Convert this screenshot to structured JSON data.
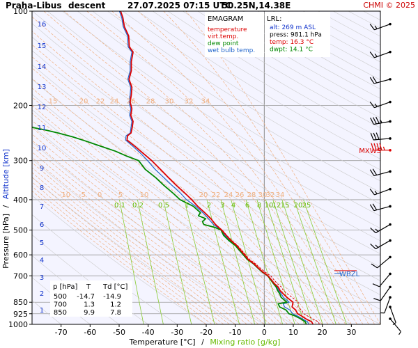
{
  "chart_data": {
    "type": "line",
    "title": {
      "station": "Praha-Libus",
      "mode": "descent",
      "datetime": "27.07.2025 07:15 UTC",
      "coords": "50.25N,14.38E"
    },
    "copyright": "CHMI © 2025",
    "diagram_name": "EMAGRAM",
    "xlabel": {
      "temperature": "Temperature [°C]",
      "separator": "/",
      "mixing": "Mixing ratio [g/kg]"
    },
    "ylabel": {
      "pressure": "Pressure [hPa]",
      "separator": "/",
      "altitude": "Altitude [km]"
    },
    "x_ticks": [
      -70,
      -60,
      -50,
      -40,
      -30,
      -20,
      -10,
      0,
      10,
      20,
      30
    ],
    "xlim": [
      -80,
      40
    ],
    "p_ticks": [
      100,
      200,
      300,
      400,
      500,
      600,
      700,
      850,
      925,
      1000
    ],
    "ylim_hpa": [
      1000,
      100
    ],
    "altitude_ticks_km": [
      1,
      2,
      3,
      4,
      5,
      6,
      7,
      8,
      9,
      10,
      11,
      12,
      13,
      14,
      15,
      16
    ],
    "legend": [
      {
        "label": "temperature",
        "color": "#dd0000"
      },
      {
        "label": "virt.temp.",
        "color": "#dd0000"
      },
      {
        "label": "dew point",
        "color": "#008800"
      },
      {
        "label": "wet bulb temp.",
        "color": "#2266cc"
      }
    ],
    "lrl_box": {
      "title": "LRL:",
      "rows": [
        {
          "text": "alt: 269 m ASL",
          "color": "#1133cc"
        },
        {
          "text": "press: 981.1 hPa",
          "color": "#000000"
        },
        {
          "text": "temp: 16.3 °C",
          "color": "#dd0000"
        },
        {
          "text": "dwpt: 14.1 °C",
          "color": "#008800"
        }
      ]
    },
    "summary_table": {
      "headers": [
        "p [hPa]",
        "T",
        "Td [°C]"
      ],
      "rows": [
        [
          "500",
          "-14.7",
          "-14.9"
        ],
        [
          "700",
          "1.3",
          "1.2"
        ],
        [
          "850",
          "9.9",
          "7.8"
        ]
      ]
    },
    "mixing_ratio_labels": [
      "0.1",
      "0.2",
      "0.5",
      "1",
      "2",
      "3",
      "4",
      "6",
      "8",
      "10",
      "12",
      "15",
      "20",
      "25"
    ],
    "mixing_ratio_labels_300": [
      "20",
      "22",
      "24",
      "26",
      "28",
      "30",
      "32",
      "34"
    ],
    "adiabat_labels_200": [
      "15",
      "20",
      "22",
      "24",
      "26",
      "28",
      "30",
      "32",
      "34"
    ],
    "adiabat_labels_400": [
      "-10",
      "-5",
      "0",
      "5",
      "10"
    ],
    "markers": [
      {
        "label": "MXWS",
        "p_hpa": 278,
        "color": "#dd0000"
      },
      {
        "label": "WBZL",
        "p_hpa": 688,
        "color": "#2266cc"
      }
    ],
    "series": [
      {
        "name": "temperature",
        "color": "#dd0000",
        "points": [
          [
            1000,
            16.8
          ],
          [
            981,
            16.3
          ],
          [
            960,
            14.3
          ],
          [
            940,
            12.8
          ],
          [
            925,
            11.5
          ],
          [
            900,
            10.8
          ],
          [
            880,
            9.6
          ],
          [
            850,
            9.9
          ],
          [
            820,
            7.8
          ],
          [
            800,
            6.6
          ],
          [
            780,
            5.4
          ],
          [
            760,
            4.8
          ],
          [
            740,
            3.4
          ],
          [
            720,
            2.4
          ],
          [
            700,
            1.3
          ],
          [
            680,
            -0.6
          ],
          [
            660,
            -2.1
          ],
          [
            640,
            -3.6
          ],
          [
            620,
            -5.6
          ],
          [
            600,
            -6.8
          ],
          [
            580,
            -8.2
          ],
          [
            560,
            -9.5
          ],
          [
            540,
            -11.5
          ],
          [
            520,
            -13.1
          ],
          [
            500,
            -14.7
          ],
          [
            480,
            -16.8
          ],
          [
            460,
            -18.4
          ],
          [
            440,
            -20.5
          ],
          [
            420,
            -22.9
          ],
          [
            400,
            -25.0
          ],
          [
            380,
            -27.5
          ],
          [
            360,
            -30.3
          ],
          [
            340,
            -33.0
          ],
          [
            320,
            -35.8
          ],
          [
            300,
            -38.8
          ],
          [
            285,
            -41.6
          ],
          [
            270,
            -44.6
          ],
          [
            258,
            -47.3
          ],
          [
            250,
            -47.1
          ],
          [
            245,
            -45.9
          ],
          [
            235,
            -45.5
          ],
          [
            225,
            -45.2
          ],
          [
            215,
            -46.0
          ],
          [
            205,
            -45.6
          ],
          [
            195,
            -46.2
          ],
          [
            185,
            -45.8
          ],
          [
            175,
            -45.6
          ],
          [
            165,
            -46.6
          ],
          [
            155,
            -45.8
          ],
          [
            145,
            -45.8
          ],
          [
            135,
            -45.2
          ],
          [
            130,
            -46.5
          ],
          [
            120,
            -46.7
          ],
          [
            112,
            -48.2
          ],
          [
            105,
            -48.7
          ],
          [
            100,
            -49.5
          ]
        ]
      },
      {
        "name": "virt.temp.",
        "color": "#dd0000",
        "points": [
          [
            1000,
            19.0
          ],
          [
            981,
            18.6
          ],
          [
            960,
            16.6
          ],
          [
            940,
            14.9
          ],
          [
            925,
            13.6
          ],
          [
            900,
            12.8
          ],
          [
            880,
            11.6
          ],
          [
            850,
            11.7
          ],
          [
            820,
            9.6
          ],
          [
            800,
            8.0
          ],
          [
            780,
            6.6
          ],
          [
            760,
            5.9
          ],
          [
            740,
            4.4
          ],
          [
            720,
            3.3
          ],
          [
            700,
            2.2
          ],
          [
            680,
            0.2
          ],
          [
            660,
            -1.5
          ],
          [
            640,
            -3.1
          ],
          [
            620,
            -5.1
          ],
          [
            600,
            -6.4
          ],
          [
            580,
            -7.8
          ],
          [
            560,
            -9.2
          ],
          [
            540,
            -11.2
          ],
          [
            520,
            -12.9
          ],
          [
            500,
            -14.5
          ],
          [
            480,
            -16.7
          ],
          [
            460,
            -18.3
          ],
          [
            440,
            -20.4
          ],
          [
            420,
            -22.8
          ],
          [
            400,
            -25.0
          ],
          [
            380,
            -27.5
          ],
          [
            360,
            -30.3
          ],
          [
            340,
            -33.0
          ],
          [
            320,
            -35.8
          ],
          [
            300,
            -38.8
          ],
          [
            285,
            -41.6
          ],
          [
            270,
            -44.6
          ],
          [
            258,
            -47.3
          ],
          [
            250,
            -47.1
          ],
          [
            245,
            -45.9
          ],
          [
            235,
            -45.5
          ],
          [
            225,
            -45.2
          ],
          [
            215,
            -46.0
          ],
          [
            205,
            -45.6
          ],
          [
            195,
            -46.2
          ],
          [
            185,
            -45.8
          ],
          [
            175,
            -45.6
          ],
          [
            165,
            -46.6
          ],
          [
            155,
            -45.8
          ],
          [
            145,
            -45.8
          ],
          [
            135,
            -45.2
          ],
          [
            130,
            -46.5
          ],
          [
            120,
            -46.7
          ],
          [
            112,
            -48.2
          ],
          [
            105,
            -48.7
          ],
          [
            100,
            -49.5
          ]
        ]
      },
      {
        "name": "dew point",
        "color": "#008800",
        "points": [
          [
            1000,
            14.5
          ],
          [
            981,
            14.1
          ],
          [
            960,
            12.5
          ],
          [
            940,
            10.6
          ],
          [
            925,
            8.5
          ],
          [
            900,
            7.5
          ],
          [
            880,
            5.3
          ],
          [
            860,
            4.8
          ],
          [
            850,
            7.8
          ],
          [
            820,
            5.8
          ],
          [
            800,
            5.4
          ],
          [
            780,
            4.6
          ],
          [
            760,
            4.1
          ],
          [
            740,
            3.1
          ],
          [
            720,
            2.2
          ],
          [
            700,
            1.2
          ],
          [
            680,
            -0.8
          ],
          [
            660,
            -2.3
          ],
          [
            640,
            -3.8
          ],
          [
            620,
            -5.9
          ],
          [
            600,
            -7.2
          ],
          [
            580,
            -8.6
          ],
          [
            560,
            -10.0
          ],
          [
            540,
            -12.2
          ],
          [
            520,
            -14.0
          ],
          [
            500,
            -14.9
          ],
          [
            490,
            -17.1
          ],
          [
            480,
            -20.8
          ],
          [
            470,
            -21.3
          ],
          [
            460,
            -20.2
          ],
          [
            450,
            -22.7
          ],
          [
            440,
            -22.0
          ],
          [
            420,
            -24.4
          ],
          [
            400,
            -29.0
          ],
          [
            380,
            -31.6
          ],
          [
            360,
            -34.6
          ],
          [
            340,
            -37.4
          ],
          [
            320,
            -41.0
          ],
          [
            300,
            -43.3
          ],
          [
            290,
            -47.5
          ],
          [
            280,
            -51.3
          ],
          [
            270,
            -56.3
          ],
          [
            260,
            -61.5
          ],
          [
            252,
            -66.0
          ],
          [
            245,
            -71.0
          ],
          [
            240,
            -75.0
          ],
          [
            235,
            -80.0
          ]
        ]
      },
      {
        "name": "wet bulb temp.",
        "color": "#2266cc",
        "points": [
          [
            1000,
            15.3
          ],
          [
            981,
            14.9
          ],
          [
            960,
            13.1
          ],
          [
            940,
            11.4
          ],
          [
            925,
            9.8
          ],
          [
            900,
            8.8
          ],
          [
            880,
            7.0
          ],
          [
            860,
            6.5
          ],
          [
            850,
            8.6
          ],
          [
            820,
            6.6
          ],
          [
            800,
            5.9
          ],
          [
            780,
            5.0
          ],
          [
            760,
            4.4
          ],
          [
            740,
            3.2
          ],
          [
            720,
            2.3
          ],
          [
            700,
            1.2
          ],
          [
            680,
            -0.7
          ],
          [
            660,
            -2.2
          ],
          [
            640,
            -3.7
          ],
          [
            620,
            -5.8
          ],
          [
            600,
            -7.0
          ],
          [
            580,
            -8.4
          ],
          [
            560,
            -9.8
          ],
          [
            540,
            -11.9
          ],
          [
            520,
            -13.6
          ],
          [
            500,
            -14.8
          ],
          [
            480,
            -17.5
          ],
          [
            460,
            -19.2
          ],
          [
            440,
            -21.2
          ],
          [
            420,
            -23.6
          ],
          [
            400,
            -26.8
          ],
          [
            380,
            -29.0
          ],
          [
            360,
            -31.8
          ],
          [
            340,
            -34.6
          ],
          [
            320,
            -37.6
          ],
          [
            300,
            -40.2
          ],
          [
            285,
            -42.5
          ],
          [
            270,
            -45.3
          ],
          [
            258,
            -47.8
          ],
          [
            250,
            -47.6
          ],
          [
            245,
            -46.2
          ],
          [
            235,
            -45.9
          ],
          [
            225,
            -45.6
          ],
          [
            215,
            -46.4
          ],
          [
            205,
            -46.0
          ],
          [
            195,
            -46.6
          ],
          [
            185,
            -46.2
          ],
          [
            175,
            -46.0
          ],
          [
            165,
            -47.0
          ],
          [
            155,
            -46.2
          ],
          [
            145,
            -46.2
          ],
          [
            135,
            -45.6
          ],
          [
            130,
            -46.9
          ],
          [
            120,
            -47.1
          ],
          [
            112,
            -48.6
          ],
          [
            105,
            -49.1
          ],
          [
            100,
            -49.9
          ]
        ]
      }
    ],
    "wind_barbs": [
      {
        "p_hpa": 110,
        "dir_deg": 250,
        "speed_kt": 15
      },
      {
        "p_hpa": 135,
        "dir_deg": 250,
        "speed_kt": 15
      },
      {
        "p_hpa": 165,
        "dir_deg": 255,
        "speed_kt": 20
      },
      {
        "p_hpa": 195,
        "dir_deg": 250,
        "speed_kt": 15
      },
      {
        "p_hpa": 225,
        "dir_deg": 260,
        "speed_kt": 35
      },
      {
        "p_hpa": 255,
        "dir_deg": 265,
        "speed_kt": 30
      },
      {
        "p_hpa": 278,
        "dir_deg": 270,
        "speed_kt": 45
      },
      {
        "p_hpa": 325,
        "dir_deg": 255,
        "speed_kt": 20
      },
      {
        "p_hpa": 370,
        "dir_deg": 250,
        "speed_kt": 15
      },
      {
        "p_hpa": 420,
        "dir_deg": 255,
        "speed_kt": 20
      },
      {
        "p_hpa": 480,
        "dir_deg": 240,
        "speed_kt": 15
      },
      {
        "p_hpa": 540,
        "dir_deg": 240,
        "speed_kt": 15
      },
      {
        "p_hpa": 610,
        "dir_deg": 230,
        "speed_kt": 10
      },
      {
        "p_hpa": 690,
        "dir_deg": 220,
        "speed_kt": 10
      },
      {
        "p_hpa": 760,
        "dir_deg": 215,
        "speed_kt": 10
      },
      {
        "p_hpa": 820,
        "dir_deg": 200,
        "speed_kt": 5
      },
      {
        "p_hpa": 880,
        "dir_deg": 160,
        "speed_kt": 5
      },
      {
        "p_hpa": 960,
        "dir_deg": 140,
        "speed_kt": 5
      }
    ],
    "grid": true
  }
}
